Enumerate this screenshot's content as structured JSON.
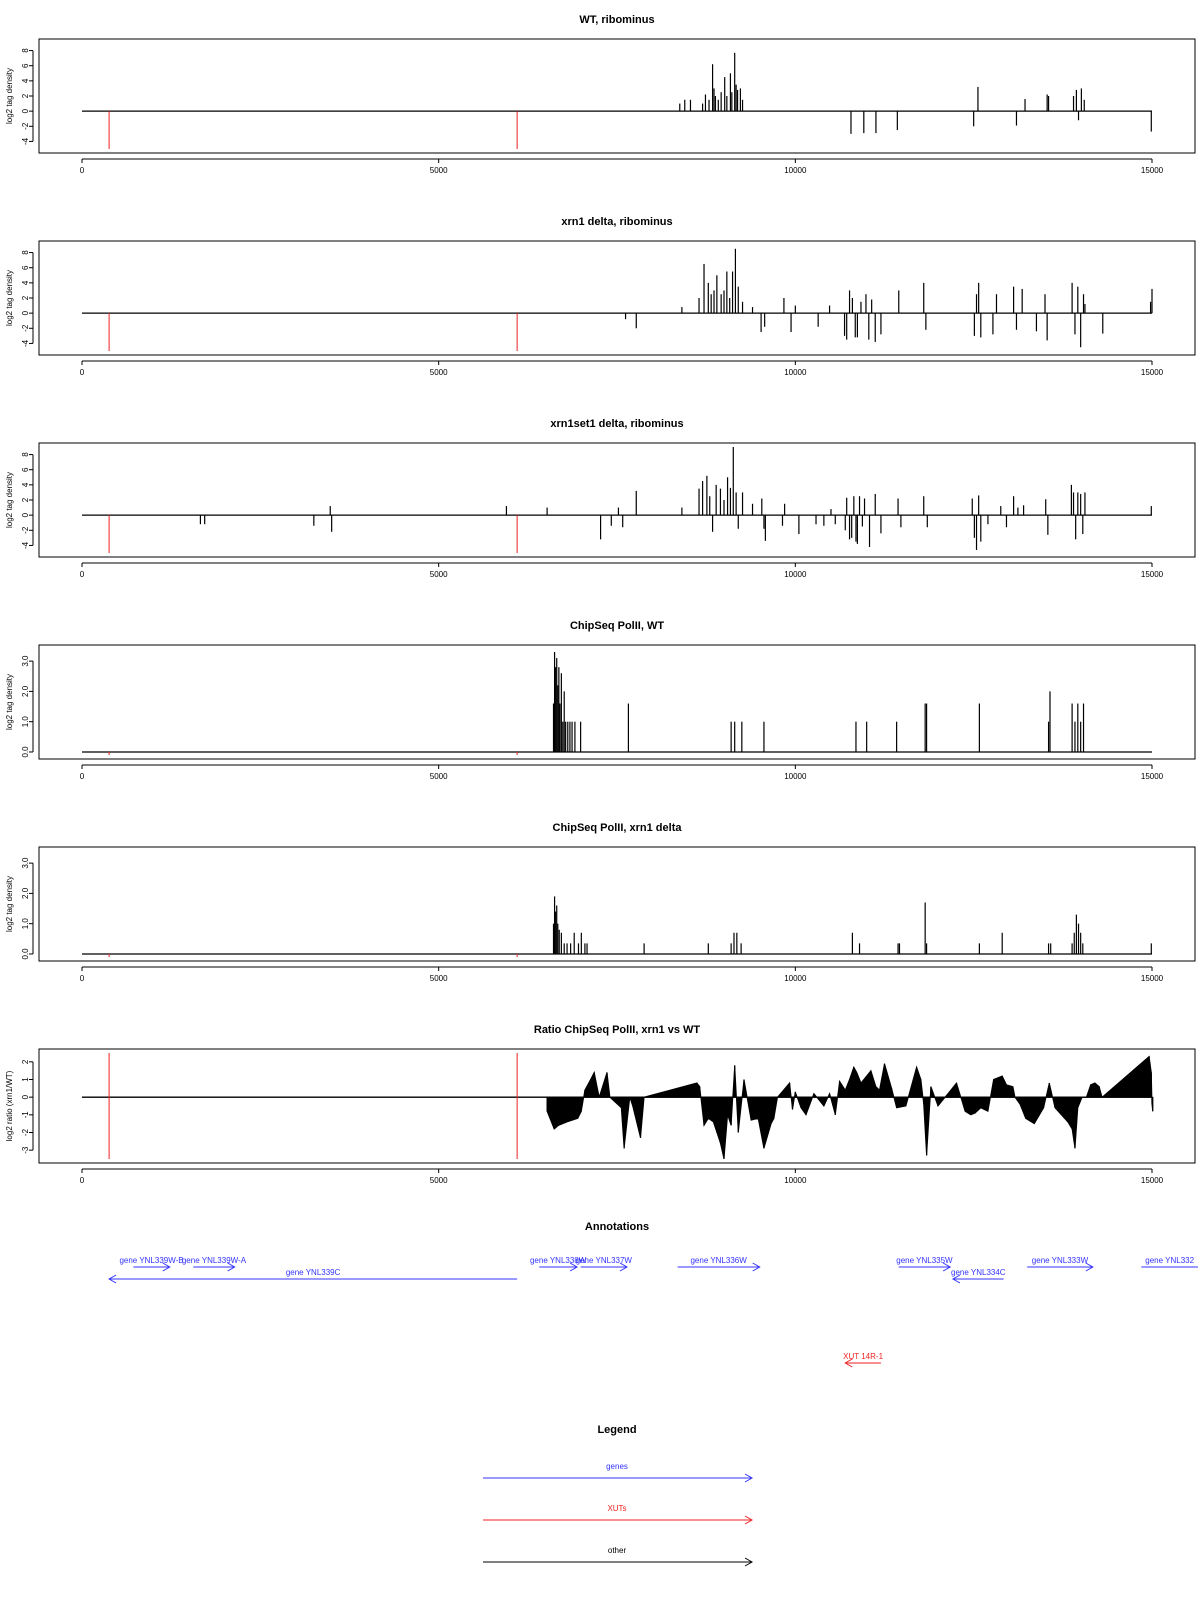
{
  "colors": {
    "gene": "#3333ff",
    "xut": "#ee2222",
    "other": "#000000",
    "marker": "#ee2222",
    "bars": "#000000"
  },
  "chart_data": [
    {
      "type": "bar",
      "title": "WT, ribominus",
      "ylabel": "log2 tag density",
      "xlim": [
        0,
        15000
      ],
      "ylim": [
        -5,
        9
      ],
      "yticks": [
        -4,
        -2,
        0,
        2,
        4,
        6,
        8
      ],
      "xticks": [
        0,
        5000,
        10000,
        15000
      ],
      "markers": [
        380,
        6100
      ],
      "x": [
        8380,
        8450,
        8530,
        8700,
        8740,
        8790,
        8840,
        8860,
        8880,
        8920,
        8960,
        9010,
        9040,
        9090,
        9110,
        9150,
        9170,
        9190,
        9230,
        9260,
        10780,
        10960,
        11130,
        11430,
        12500,
        12560,
        13100,
        13220,
        13530,
        13550,
        13900,
        13940,
        13970,
        14010,
        14050,
        14990
      ],
      "values": [
        1,
        1.5,
        1.5,
        1,
        2.2,
        1.5,
        6.2,
        3,
        2,
        1.5,
        2.5,
        4.5,
        2,
        5,
        2.5,
        7.7,
        3.5,
        2.8,
        3,
        1.5,
        -3,
        -2.9,
        -2.9,
        -2.5,
        -2,
        3.2,
        -1.9,
        1.6,
        2.2,
        2,
        2,
        2.8,
        -1.2,
        3,
        1.5,
        -2.7
      ]
    },
    {
      "type": "bar",
      "title": "xrn1 delta, ribominus",
      "ylabel": "log2 tag density",
      "xlim": [
        0,
        15000
      ],
      "ylim": [
        -5,
        9
      ],
      "yticks": [
        -4,
        -2,
        0,
        2,
        4,
        6,
        8
      ],
      "xticks": [
        0,
        5000,
        10000,
        15000
      ],
      "markers": [
        380,
        6100
      ],
      "x": [
        7620,
        7770,
        8410,
        8650,
        8720,
        8780,
        8820,
        8860,
        8900,
        8960,
        9000,
        9040,
        9080,
        9120,
        9160,
        9200,
        9260,
        9400,
        9520,
        9570,
        9840,
        9940,
        10000,
        10320,
        10480,
        10690,
        10720,
        10760,
        10800,
        10840,
        10870,
        10920,
        10990,
        11030,
        11070,
        11120,
        11200,
        11450,
        11800,
        11830,
        12510,
        12540,
        12570,
        12600,
        12770,
        12820,
        13060,
        13100,
        13180,
        13380,
        13500,
        13530,
        13880,
        13920,
        13960,
        14000,
        14040,
        14060,
        14310,
        14980,
        15000
      ],
      "values": [
        -0.8,
        -2,
        0.8,
        2,
        6.5,
        4,
        2.5,
        3,
        5,
        2.5,
        3,
        5.5,
        2,
        5.5,
        8.5,
        3.5,
        1.5,
        0.8,
        -2.5,
        -1.8,
        2,
        -2.5,
        1,
        -1.8,
        1,
        -3,
        -3.5,
        3,
        2,
        -3.2,
        -3.2,
        1.5,
        2.5,
        -3.5,
        1.8,
        -3.8,
        -2.8,
        3,
        4,
        -2.2,
        -3,
        2.5,
        4,
        -3.2,
        -2.8,
        2.5,
        3.5,
        -2.2,
        3.2,
        -2.4,
        2.5,
        -3.6,
        4,
        -2.8,
        3.5,
        -4.5,
        2.5,
        1.2,
        -2.7,
        1.5,
        3.2
      ]
    },
    {
      "type": "bar",
      "title": "xrn1set1 delta, ribominus",
      "ylabel": "log2 tag density",
      "xlim": [
        0,
        15000
      ],
      "ylim": [
        -5,
        9
      ],
      "yticks": [
        -4,
        -2,
        0,
        2,
        4,
        6,
        8
      ],
      "xticks": [
        0,
        5000,
        10000,
        15000
      ],
      "markers": [
        380,
        6100
      ],
      "x": [
        1660,
        1720,
        3250,
        3480,
        3500,
        5950,
        6520,
        7270,
        7420,
        7520,
        7580,
        7770,
        8410,
        8650,
        8700,
        8760,
        8800,
        8840,
        8890,
        8950,
        9000,
        9050,
        9090,
        9130,
        9170,
        9200,
        9260,
        9400,
        9530,
        9560,
        9580,
        9820,
        9850,
        10050,
        10290,
        10400,
        10500,
        10560,
        10700,
        10720,
        10760,
        10790,
        10820,
        10850,
        10870,
        10900,
        10940,
        10970,
        11040,
        11120,
        11200,
        11440,
        11480,
        11800,
        11850,
        12480,
        12510,
        12540,
        12570,
        12600,
        12700,
        12880,
        12960,
        13060,
        13120,
        13200,
        13510,
        13540,
        13870,
        13900,
        13930,
        13960,
        14000,
        14030,
        14060,
        14990
      ],
      "values": [
        -1.2,
        -1.2,
        -1.4,
        1.2,
        -2.2,
        1.2,
        1,
        -3.2,
        -1.4,
        1,
        -1.6,
        3.2,
        1,
        3.5,
        4.5,
        5.2,
        2.5,
        -2.2,
        4,
        3.5,
        2,
        5,
        3.6,
        9,
        3,
        -1.8,
        3,
        1.5,
        2.2,
        -1.8,
        -3.4,
        -1.4,
        1.5,
        -2.5,
        -1.2,
        -1.4,
        0.8,
        -1.2,
        -2,
        2.3,
        -3.2,
        -3,
        2.5,
        -3.5,
        -3.8,
        2.5,
        -1.5,
        2.2,
        -4.2,
        2.8,
        -2.4,
        2.2,
        -1.6,
        2.5,
        -1.6,
        2.2,
        -3,
        -4.6,
        2.6,
        -3.5,
        -1.2,
        1.2,
        -1.6,
        2.5,
        1,
        1.3,
        2.1,
        -2.6,
        4,
        3,
        -3.2,
        3,
        2.8,
        -2.5,
        3,
        1.2
      ]
    },
    {
      "type": "bar",
      "title": "ChipSeq PolII, WT",
      "ylabel": "log2 tag density",
      "xlim": [
        0,
        15000
      ],
      "ylim": [
        -0.1,
        3.4
      ],
      "yticks": [
        0,
        1,
        2,
        3
      ],
      "ytick_labels": [
        "0.0",
        "1.0",
        "2.0",
        "3.0"
      ],
      "xticks": [
        0,
        5000,
        10000,
        15000
      ],
      "markers": [
        380,
        6100
      ],
      "x": [
        6610,
        6625,
        6640,
        6655,
        6670,
        6685,
        6700,
        6720,
        6740,
        6760,
        6780,
        6810,
        6840,
        6870,
        6910,
        6990,
        7660,
        9100,
        9150,
        9250,
        9560,
        10850,
        11000,
        11420,
        11820,
        11840,
        12580,
        13550,
        13570,
        13880,
        13920,
        13960,
        14000,
        14040
      ],
      "values": [
        1.6,
        3.3,
        2.8,
        3.1,
        2.2,
        2.8,
        1.6,
        2.6,
        1.0,
        2.0,
        1.0,
        1.0,
        1.0,
        1.0,
        1.0,
        1.0,
        1.6,
        1.0,
        1.0,
        1.0,
        1.0,
        1.0,
        1.0,
        1.0,
        1.6,
        1.6,
        1.6,
        1.0,
        2.0,
        1.6,
        1.0,
        1.6,
        1.0,
        1.6
      ]
    },
    {
      "type": "bar",
      "title": "ChipSeq PolII, xrn1 delta",
      "ylabel": "log2 tag density",
      "xlim": [
        0,
        15000
      ],
      "ylim": [
        -0.1,
        3.4
      ],
      "yticks": [
        0,
        1,
        2,
        3
      ],
      "ytick_labels": [
        "0.0",
        "1.0",
        "2.0",
        "3.0"
      ],
      "xticks": [
        0,
        5000,
        10000,
        15000
      ],
      "markers": [
        380,
        6100
      ],
      "x": [
        6610,
        6625,
        6640,
        6655,
        6670,
        6690,
        6720,
        6760,
        6800,
        6850,
        6900,
        6960,
        7000,
        7050,
        7080,
        7880,
        8780,
        9100,
        9140,
        9180,
        9240,
        10800,
        10900,
        11440,
        11460,
        11820,
        11840,
        12580,
        12900,
        13550,
        13580,
        13880,
        13910,
        13940,
        13970,
        14000,
        14030,
        14990
      ],
      "values": [
        1.0,
        1.9,
        1.4,
        1.6,
        1.0,
        0.8,
        0.7,
        0.35,
        0.35,
        0.35,
        0.7,
        0.35,
        0.7,
        0.35,
        0.35,
        0.35,
        0.35,
        0.35,
        0.7,
        0.7,
        0.35,
        0.7,
        0.35,
        0.35,
        0.35,
        1.7,
        0.35,
        0.35,
        0.7,
        0.35,
        0.35,
        0.35,
        0.7,
        1.3,
        1.0,
        0.7,
        0.35,
        0.35
      ]
    },
    {
      "type": "area",
      "title": "Ratio ChipSeq PolII, xrn1 vs WT",
      "ylabel": "log2 ratio (xrn1/WT)",
      "xlim": [
        0,
        15000
      ],
      "ylim": [
        -3.5,
        2.5
      ],
      "yticks": [
        -3,
        -2,
        -1,
        0,
        1,
        2
      ],
      "xticks": [
        0,
        5000,
        10000,
        15000
      ],
      "markers": [
        380,
        6100
      ],
      "x": [
        6520,
        6620,
        6680,
        6800,
        6950,
        7000,
        7050,
        7130,
        7180,
        7250,
        7360,
        7400,
        7560,
        7600,
        7680,
        7720,
        7830,
        7880,
        8620,
        8660,
        8720,
        8780,
        8850,
        8900,
        8950,
        9000,
        9050,
        9100,
        9150,
        9200,
        9280,
        9380,
        9480,
        9560,
        9660,
        9700,
        9750,
        9920,
        9960,
        10000,
        10080,
        10150,
        10260,
        10400,
        10480,
        10560,
        10620,
        10700,
        10760,
        10820,
        10860,
        10920,
        11000,
        11060,
        11130,
        11180,
        11250,
        11350,
        11420,
        11550,
        11700,
        11760,
        11800,
        11840,
        11900,
        12000,
        12100,
        12260,
        12380,
        12460,
        12520,
        12600,
        12700,
        12780,
        12900,
        12960,
        13050,
        13080,
        13150,
        13230,
        13350,
        13480,
        13560,
        13640,
        13820,
        13880,
        13920,
        13960,
        14020,
        14080,
        14140,
        14200,
        14260,
        14300,
        14960,
        14990,
        15000,
        15010
      ],
      "values": [
        -0.8,
        -1.8,
        -1.6,
        -1.4,
        -1.2,
        -0.8,
        0.4,
        1.0,
        1.4,
        0,
        1.4,
        0,
        -0.6,
        -2.9,
        0,
        -0.5,
        -2.3,
        0,
        0.8,
        0.6,
        -1.6,
        -1.2,
        -1.4,
        -2.0,
        -2.6,
        -3.5,
        -1.0,
        -1.6,
        1.8,
        -2.0,
        1.0,
        -1.3,
        -1.2,
        -2.9,
        -1.5,
        -1.2,
        0,
        0.8,
        -0.7,
        0.3,
        -0.6,
        -1.0,
        0.2,
        -0.5,
        0.2,
        -1.0,
        0.9,
        0.4,
        1.0,
        1.7,
        1.4,
        0.8,
        1.2,
        1.5,
        0.6,
        0.4,
        1.9,
        0.5,
        -0.6,
        -0.5,
        1.7,
        1.0,
        -0.4,
        -3.3,
        0.6,
        -0.5,
        0,
        0.8,
        -0.8,
        -1.0,
        -0.9,
        -0.6,
        -0.8,
        1.0,
        1.2,
        0.7,
        0.6,
        0,
        -0.4,
        -1.2,
        -1.5,
        -0.6,
        0.8,
        -0.6,
        -1.4,
        -1.8,
        -2.9,
        -0.6,
        0,
        0,
        0.7,
        0.8,
        0.6,
        0,
        2.3,
        1.4,
        -0.4,
        -0.8
      ]
    }
  ],
  "annotations": {
    "title": "Annotations",
    "features": [
      {
        "label": "gene YNL339W-B",
        "type": "gene",
        "strand": "+",
        "start": 720,
        "end": 1230,
        "row": 0
      },
      {
        "label": "gene YNL339W-A",
        "type": "gene",
        "strand": "+",
        "start": 1560,
        "end": 2140,
        "row": 0
      },
      {
        "label": "gene YNL339C",
        "type": "gene",
        "strand": "-",
        "start": 380,
        "end": 6100,
        "row": 1
      },
      {
        "label": "gene YNL338W",
        "type": "gene",
        "strand": "+",
        "start": 6410,
        "end": 6940,
        "row": 0
      },
      {
        "label": "gene YNL337W",
        "type": "gene",
        "strand": "+",
        "start": 6990,
        "end": 7640,
        "row": 0
      },
      {
        "label": "gene YNL336W",
        "type": "gene",
        "strand": "+",
        "start": 8350,
        "end": 9500,
        "row": 0
      },
      {
        "label": "gene YNL335W",
        "type": "gene",
        "strand": "+",
        "start": 11450,
        "end": 12170,
        "row": 0
      },
      {
        "label": "gene YNL334C",
        "type": "gene",
        "strand": "-",
        "start": 12210,
        "end": 12920,
        "row": 1
      },
      {
        "label": "gene YNL333W",
        "type": "gene",
        "strand": "+",
        "start": 13250,
        "end": 14170,
        "row": 0
      },
      {
        "label": "gene YNL332",
        "type": "gene",
        "strand": "+",
        "start": 14850,
        "end": 15650,
        "row": 0
      },
      {
        "label": "XUT 14R-1",
        "type": "xut",
        "strand": "-",
        "start": 10700,
        "end": 11200,
        "row": 8
      }
    ]
  },
  "legend": {
    "title": "Legend",
    "items": [
      {
        "label": "genes",
        "type": "gene"
      },
      {
        "label": "XUTs",
        "type": "xut"
      },
      {
        "label": "other",
        "type": "other"
      }
    ]
  }
}
